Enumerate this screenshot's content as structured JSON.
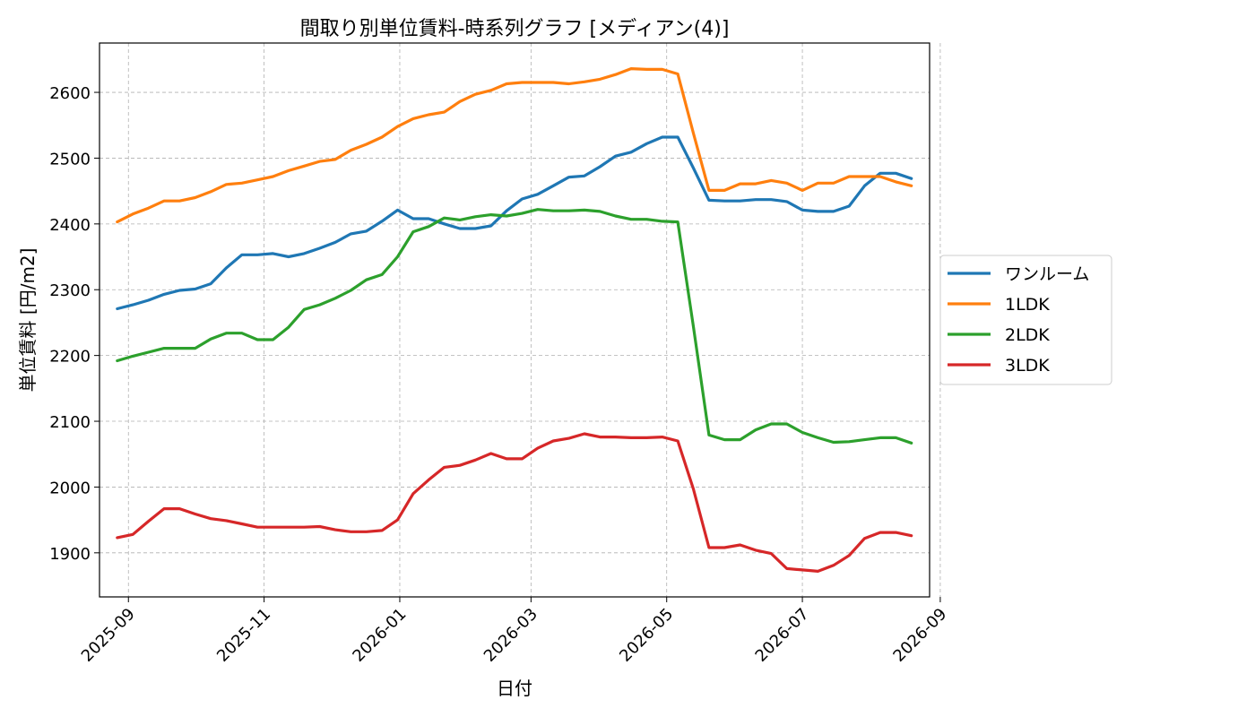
{
  "chart_data": {
    "type": "line",
    "title": "間取り別単位賃料-時系列グラフ [メディアン(4)]",
    "xlabel": "日付",
    "ylabel": "単位賃料 [円/m2]",
    "x": [
      "2025-08-27",
      "2025-09-03",
      "2025-09-10",
      "2025-09-17",
      "2025-09-24",
      "2025-10-01",
      "2025-10-08",
      "2025-10-15",
      "2025-10-22",
      "2025-10-29",
      "2025-11-05",
      "2025-11-12",
      "2025-11-19",
      "2025-11-26",
      "2025-12-03",
      "2025-12-10",
      "2025-12-17",
      "2025-12-24",
      "2025-12-31",
      "2026-01-07",
      "2026-01-14",
      "2026-01-21",
      "2026-01-28",
      "2026-02-04",
      "2026-02-11",
      "2026-02-18",
      "2026-02-25",
      "2026-03-04",
      "2026-03-11",
      "2026-03-18",
      "2026-03-25",
      "2026-04-01",
      "2026-04-08",
      "2026-04-15",
      "2026-04-22",
      "2026-04-29",
      "2026-05-06",
      "2026-05-13",
      "2026-05-20",
      "2026-05-27",
      "2026-06-03",
      "2026-06-10",
      "2026-06-17",
      "2026-06-24",
      "2026-07-01",
      "2026-07-08",
      "2026-07-15",
      "2026-07-22",
      "2026-07-29",
      "2026-08-05",
      "2026-08-12",
      "2026-08-19"
    ],
    "xticks": [
      "2025-09",
      "2025-11",
      "2026-01",
      "2026-03",
      "2026-05",
      "2026-07",
      "2026-09"
    ],
    "ylim": [
      1833,
      2675
    ],
    "yticks": [
      1900,
      2000,
      2100,
      2200,
      2300,
      2400,
      2500,
      2600
    ],
    "grid": true,
    "legend_position": "outside-right",
    "series": [
      {
        "name": "ワンルーム",
        "color": "#1f77b4",
        "values": [
          2271,
          2277,
          2284,
          2293,
          2299,
          2301,
          2309,
          2333,
          2353,
          2353,
          2355,
          2350,
          2355,
          2363,
          2372,
          2385,
          2389,
          2404,
          2421,
          2408,
          2408,
          2400,
          2393,
          2393,
          2397,
          2420,
          2438,
          2445,
          2458,
          2471,
          2473,
          2487,
          2503,
          2509,
          2522,
          2532,
          2532,
          2485,
          2436,
          2435,
          2435,
          2437,
          2437,
          2434,
          2421,
          2419,
          2419,
          2427,
          2458,
          2477,
          2477,
          2469
        ]
      },
      {
        "name": "1LDK",
        "color": "#ff7f0e",
        "values": [
          2403,
          2415,
          2424,
          2435,
          2435,
          2440,
          2449,
          2460,
          2462,
          2467,
          2472,
          2481,
          2488,
          2495,
          2498,
          2512,
          2521,
          2532,
          2548,
          2560,
          2566,
          2570,
          2586,
          2597,
          2603,
          2613,
          2615,
          2615,
          2615,
          2613,
          2616,
          2620,
          2627,
          2636,
          2635,
          2635,
          2628,
          2538,
          2451,
          2451,
          2461,
          2461,
          2466,
          2462,
          2451,
          2462,
          2462,
          2472,
          2472,
          2472,
          2464,
          2458
        ]
      },
      {
        "name": "2LDK",
        "color": "#2ca02c",
        "values": [
          2192,
          2199,
          2205,
          2211,
          2211,
          2211,
          2225,
          2234,
          2234,
          2224,
          2224,
          2243,
          2270,
          2277,
          2287,
          2299,
          2315,
          2323,
          2350,
          2388,
          2396,
          2409,
          2406,
          2411,
          2414,
          2412,
          2416,
          2422,
          2420,
          2420,
          2421,
          2419,
          2412,
          2407,
          2407,
          2404,
          2403,
          2244,
          2079,
          2072,
          2072,
          2087,
          2096,
          2096,
          2083,
          2075,
          2068,
          2069,
          2072,
          2075,
          2075,
          2067
        ]
      },
      {
        "name": "3LDK",
        "color": "#d62728",
        "values": [
          1923,
          1928,
          1948,
          1967,
          1967,
          1959,
          1952,
          1949,
          1944,
          1939,
          1939,
          1939,
          1939,
          1940,
          1935,
          1932,
          1932,
          1934,
          1950,
          1990,
          2011,
          2030,
          2033,
          2041,
          2051,
          2043,
          2043,
          2059,
          2070,
          2074,
          2081,
          2076,
          2076,
          2075,
          2075,
          2076,
          2070,
          1997,
          1908,
          1908,
          1912,
          1904,
          1899,
          1876,
          1874,
          1872,
          1881,
          1896,
          1922,
          1931,
          1931,
          1926
        ]
      }
    ]
  }
}
